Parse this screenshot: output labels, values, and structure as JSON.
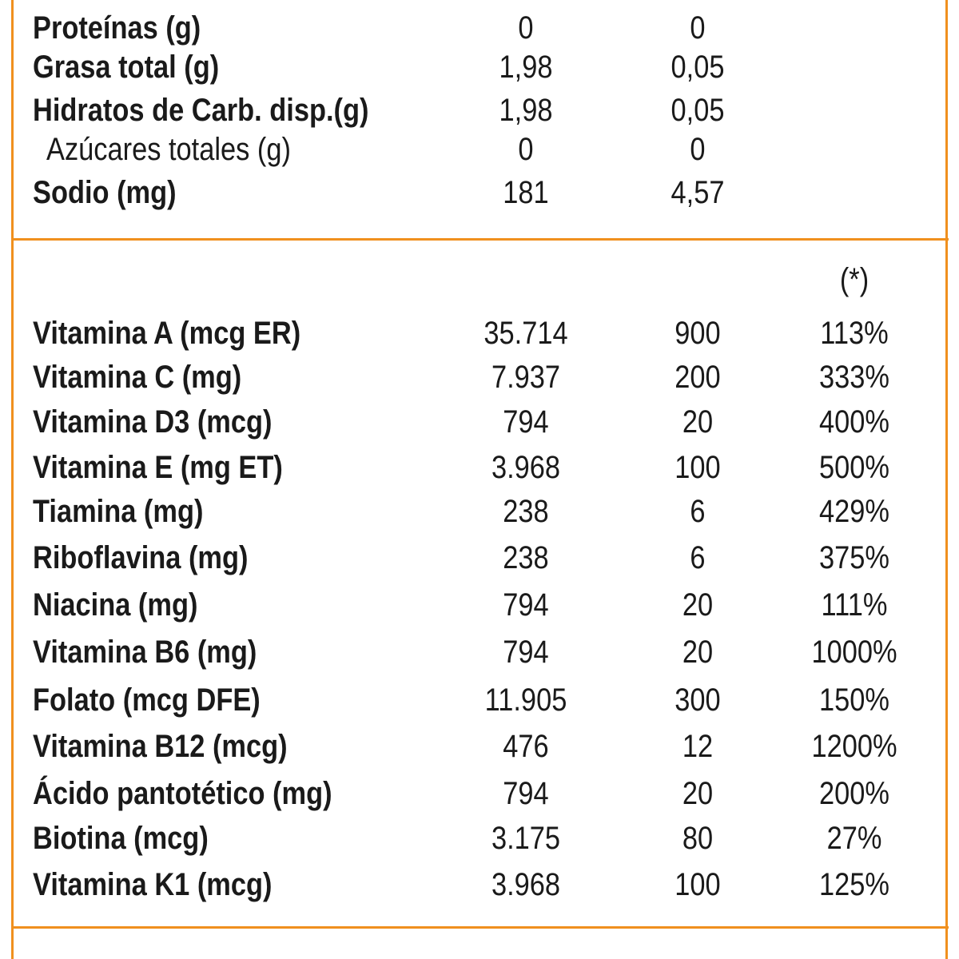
{
  "macros": [
    {
      "label": "Proteínas (g)",
      "v1": "0",
      "v2": "0",
      "sub": false
    },
    {
      "label": "Grasa total (g)",
      "v1": "1,98",
      "v2": "0,05",
      "sub": false
    },
    {
      "label": "Hidratos de Carb. disp.(g)",
      "v1": "1,98",
      "v2": "0,05",
      "sub": false
    },
    {
      "label": "Azúcares totales (g)",
      "v1": "0",
      "v2": "0",
      "sub": true
    },
    {
      "label": "Sodio (mg)",
      "v1": "181",
      "v2": "4,57",
      "sub": false
    }
  ],
  "vitamins_header": {
    "pct": "(*)"
  },
  "vitamins": [
    {
      "label": "Vitamina A (mcg ER)",
      "v1": "35.714",
      "v2": "900",
      "pct": "113%"
    },
    {
      "label": "Vitamina C (mg)",
      "v1": "7.937",
      "v2": "200",
      "pct": "333%"
    },
    {
      "label": "Vitamina D3 (mcg)",
      "v1": "794",
      "v2": "20",
      "pct": "400%"
    },
    {
      "label": "Vitamina E (mg ET)",
      "v1": "3.968",
      "v2": "100",
      "pct": "500%"
    },
    {
      "label": "Tiamina (mg)",
      "v1": "238",
      "v2": "6",
      "pct": "429%"
    },
    {
      "label": "Riboflavina (mg)",
      "v1": "238",
      "v2": "6",
      "pct": "375%"
    },
    {
      "label": "Niacina (mg)",
      "v1": "794",
      "v2": "20",
      "pct": "111%"
    },
    {
      "label": "Vitamina B6 (mg)",
      "v1": "794",
      "v2": "20",
      "pct": "1000%"
    },
    {
      "label": "Folato (mcg DFE)",
      "v1": "11.905",
      "v2": "300",
      "pct": "150%"
    },
    {
      "label": "Vitamina B12 (mcg)",
      "v1": "476",
      "v2": "12",
      "pct": "1200%"
    },
    {
      "label": "Ácido pantotético (mg)",
      "v1": "794",
      "v2": "20",
      "pct": "200%"
    },
    {
      "label": "Biotina (mcg)",
      "v1": "3.175",
      "v2": "80",
      "pct": "27%"
    },
    {
      "label": "Vitamina K1 (mcg)",
      "v1": "3.968",
      "v2": "100",
      "pct": "125%"
    }
  ],
  "colors": {
    "border": "#f0901e",
    "text": "#1a1a1a"
  }
}
